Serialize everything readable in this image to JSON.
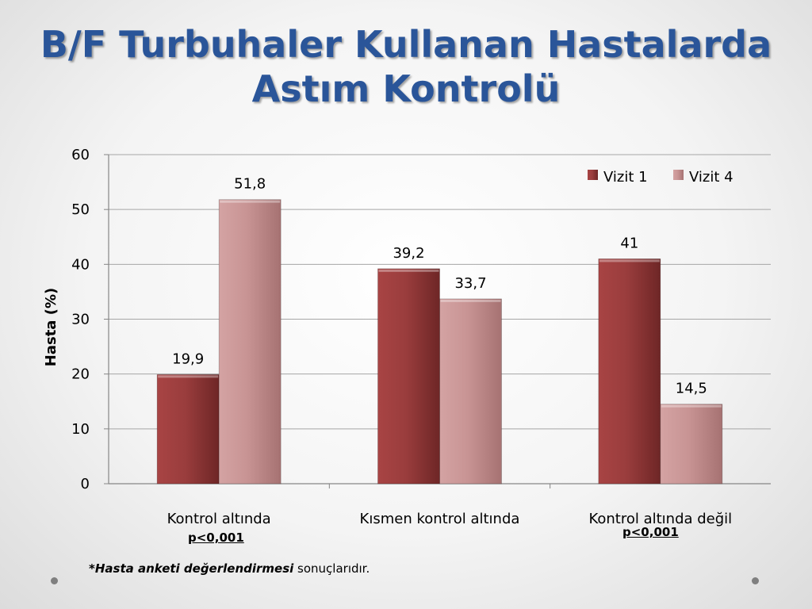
{
  "slide": {
    "title_line1": "B/F Turbuhaler Kullanan Hastalarda",
    "title_line2": "Astım Kontrolü",
    "footnote_bold": "*Hasta anketi değerlendirmesi",
    "footnote_rest": " sonuçlarıdır.",
    "pvalues": [
      "p<0,001",
      "p<0,001"
    ]
  },
  "chart_data": {
    "type": "bar",
    "categories": [
      "Kontrol altında",
      "Kısmen kontrol altında",
      "Kontrol altında değil"
    ],
    "series": [
      {
        "name": "Vizit 1",
        "values": [
          19.9,
          39.2,
          41
        ],
        "labels": [
          "19,9",
          "39,2",
          "41"
        ],
        "color": "#8f3535"
      },
      {
        "name": "Vizit 4",
        "values": [
          51.8,
          33.7,
          14.5
        ],
        "labels": [
          "51,8",
          "33,7",
          "14,5"
        ],
        "color": "#c48e8e"
      }
    ],
    "ylabel": "Hasta (%)",
    "ylim": [
      0,
      60
    ],
    "yticks": [
      0,
      10,
      20,
      30,
      40,
      50,
      60
    ],
    "grid": true,
    "legend": "top-right"
  }
}
